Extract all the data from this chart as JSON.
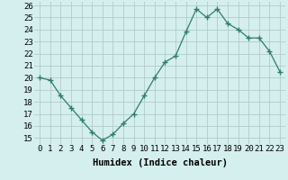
{
  "x": [
    0,
    1,
    2,
    3,
    4,
    5,
    6,
    7,
    8,
    9,
    10,
    11,
    12,
    13,
    14,
    15,
    16,
    17,
    18,
    19,
    20,
    21,
    22,
    23
  ],
  "y": [
    20.0,
    19.8,
    18.5,
    17.5,
    16.5,
    15.5,
    14.8,
    15.3,
    16.2,
    17.0,
    18.5,
    20.0,
    21.3,
    21.8,
    23.8,
    25.7,
    25.0,
    25.7,
    24.5,
    24.0,
    23.3,
    23.3,
    22.2,
    20.5
  ],
  "xlabel": "Humidex (Indice chaleur)",
  "ylim": [
    14.5,
    26.3
  ],
  "xlim": [
    -0.5,
    23.5
  ],
  "yticks": [
    15,
    16,
    17,
    18,
    19,
    20,
    21,
    22,
    23,
    24,
    25,
    26
  ],
  "xticks": [
    0,
    1,
    2,
    3,
    4,
    5,
    6,
    7,
    8,
    9,
    10,
    11,
    12,
    13,
    14,
    15,
    16,
    17,
    18,
    19,
    20,
    21,
    22,
    23
  ],
  "line_color": "#2e7d6e",
  "marker_color": "#2e7d6e",
  "bg_color": "#d5eeee",
  "grid_color": "#b0cccc",
  "tick_label_fontsize": 6.5,
  "xlabel_fontsize": 7.5
}
